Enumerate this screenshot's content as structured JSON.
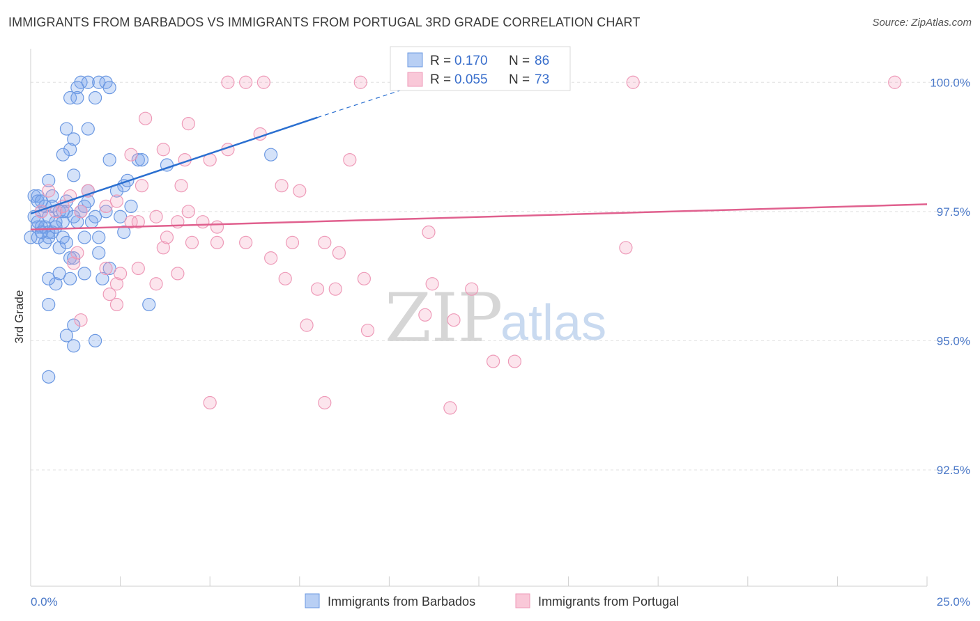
{
  "title": "IMMIGRANTS FROM BARBADOS VS IMMIGRANTS FROM PORTUGAL 3RD GRADE CORRELATION CHART",
  "source": "Source: ZipAtlas.com",
  "watermark": {
    "zip": "ZIP",
    "atlas": "atlas"
  },
  "colors": {
    "blue": "#5b8fe0",
    "blue_line": "#2a6fd0",
    "pink": "#f08fb0",
    "pink_line": "#e0608e",
    "grid": "#e0e0e0",
    "tick_label": "#4a78c8"
  },
  "chart_data": {
    "type": "scatter",
    "title": "IMMIGRANTS FROM BARBADOS VS IMMIGRANTS FROM PORTUGAL 3RD GRADE CORRELATION CHART",
    "xlabel": "",
    "ylabel": "3rd Grade",
    "xlim": [
      0,
      25
    ],
    "ylim": [
      90.25,
      100.65
    ],
    "x_tick_labels": [
      "0.0%",
      "25.0%"
    ],
    "y_ticks": [
      {
        "value": 100.0,
        "label": "100.0%"
      },
      {
        "value": 97.5,
        "label": "97.5%"
      },
      {
        "value": 95.0,
        "label": "95.0%"
      },
      {
        "value": 92.5,
        "label": "92.5%"
      }
    ],
    "grid": true,
    "legend": {
      "placement": "top-center",
      "entries": [
        {
          "r_label": "R =",
          "r_value": "0.170",
          "n_label": "N =",
          "n_value": "86"
        },
        {
          "r_label": "R =",
          "r_value": "0.055",
          "n_label": "N =",
          "n_value": "73"
        }
      ]
    },
    "series": [
      {
        "name": "Immigrants from Barbados",
        "color": "#5b8fe0",
        "trend": {
          "x": [
            0,
            8.0
          ],
          "y": [
            97.46,
            99.32
          ],
          "dashed_to": [
            11.0,
            100.0
          ]
        },
        "points": [
          [
            1.4,
            100.0
          ],
          [
            1.6,
            100.0
          ],
          [
            1.9,
            100.0
          ],
          [
            2.1,
            100.0
          ],
          [
            1.3,
            99.9
          ],
          [
            2.2,
            99.9
          ],
          [
            1.1,
            99.7
          ],
          [
            1.3,
            99.7
          ],
          [
            1.8,
            99.7
          ],
          [
            1.0,
            99.1
          ],
          [
            1.6,
            99.1
          ],
          [
            1.2,
            98.9
          ],
          [
            1.1,
            98.7
          ],
          [
            0.9,
            98.6
          ],
          [
            2.2,
            98.5
          ],
          [
            3.0,
            98.5
          ],
          [
            3.1,
            98.5
          ],
          [
            3.8,
            98.4
          ],
          [
            6.7,
            98.6
          ],
          [
            0.5,
            98.1
          ],
          [
            1.2,
            98.2
          ],
          [
            2.6,
            98.0
          ],
          [
            1.6,
            97.9
          ],
          [
            0.2,
            97.8
          ],
          [
            0.6,
            97.8
          ],
          [
            1.0,
            97.7
          ],
          [
            1.5,
            97.6
          ],
          [
            0.1,
            97.8
          ],
          [
            0.2,
            97.7
          ],
          [
            0.4,
            97.6
          ],
          [
            0.6,
            97.6
          ],
          [
            0.8,
            97.5
          ],
          [
            1.0,
            97.5
          ],
          [
            0.3,
            97.5
          ],
          [
            0.1,
            97.4
          ],
          [
            0.7,
            97.3
          ],
          [
            0.9,
            97.3
          ],
          [
            1.3,
            97.3
          ],
          [
            1.7,
            97.3
          ],
          [
            0.2,
            97.2
          ],
          [
            0.3,
            97.2
          ],
          [
            0.4,
            97.2
          ],
          [
            0.5,
            97.1
          ],
          [
            0.6,
            97.1
          ],
          [
            0.2,
            97.0
          ],
          [
            0.0,
            97.0
          ],
          [
            0.9,
            97.0
          ],
          [
            1.5,
            97.0
          ],
          [
            1.9,
            97.0
          ],
          [
            2.6,
            97.1
          ],
          [
            2.7,
            98.1
          ],
          [
            2.4,
            97.9
          ],
          [
            2.1,
            97.5
          ],
          [
            1.8,
            97.4
          ],
          [
            1.2,
            97.4
          ],
          [
            0.8,
            96.8
          ],
          [
            1.1,
            96.6
          ],
          [
            1.2,
            96.6
          ],
          [
            1.9,
            96.7
          ],
          [
            0.5,
            96.2
          ],
          [
            0.8,
            96.3
          ],
          [
            0.7,
            96.1
          ],
          [
            1.1,
            96.2
          ],
          [
            1.5,
            96.3
          ],
          [
            2.2,
            96.4
          ],
          [
            2.0,
            96.2
          ],
          [
            0.5,
            95.7
          ],
          [
            3.3,
            95.7
          ],
          [
            1.2,
            95.3
          ],
          [
            1.0,
            95.1
          ],
          [
            1.2,
            94.9
          ],
          [
            0.5,
            94.3
          ],
          [
            1.8,
            95.0
          ],
          [
            0.3,
            97.7
          ],
          [
            0.5,
            97.4
          ],
          [
            1.6,
            97.7
          ],
          [
            0.4,
            96.9
          ],
          [
            2.5,
            97.4
          ],
          [
            2.8,
            97.6
          ],
          [
            0.7,
            97.2
          ],
          [
            1.0,
            96.9
          ],
          [
            0.2,
            97.3
          ],
          [
            0.9,
            97.5
          ],
          [
            1.4,
            97.5
          ],
          [
            0.5,
            97.0
          ],
          [
            0.3,
            97.1
          ]
        ]
      },
      {
        "name": "Immigrants from Portugal",
        "color": "#f08fb0",
        "trend": {
          "x": [
            0,
            25.0
          ],
          "y": [
            97.15,
            97.64
          ]
        },
        "points": [
          [
            5.5,
            100.0
          ],
          [
            6.0,
            100.0
          ],
          [
            6.5,
            100.0
          ],
          [
            9.2,
            100.0
          ],
          [
            14.0,
            100.0
          ],
          [
            16.8,
            100.0
          ],
          [
            24.1,
            100.0
          ],
          [
            3.2,
            99.3
          ],
          [
            4.4,
            99.2
          ],
          [
            6.4,
            99.0
          ],
          [
            5.5,
            98.7
          ],
          [
            2.8,
            98.6
          ],
          [
            3.7,
            98.7
          ],
          [
            4.3,
            98.5
          ],
          [
            5.0,
            98.5
          ],
          [
            7.0,
            98.0
          ],
          [
            7.5,
            97.9
          ],
          [
            8.9,
            98.5
          ],
          [
            4.2,
            98.0
          ],
          [
            3.1,
            98.0
          ],
          [
            0.5,
            97.9
          ],
          [
            1.1,
            97.8
          ],
          [
            1.6,
            97.9
          ],
          [
            2.4,
            97.7
          ],
          [
            0.7,
            97.5
          ],
          [
            1.4,
            97.5
          ],
          [
            2.8,
            97.3
          ],
          [
            3.5,
            97.4
          ],
          [
            4.1,
            97.3
          ],
          [
            4.4,
            97.5
          ],
          [
            4.8,
            97.3
          ],
          [
            3.8,
            97.0
          ],
          [
            5.2,
            97.2
          ],
          [
            3.7,
            96.8
          ],
          [
            4.5,
            96.9
          ],
          [
            5.2,
            96.9
          ],
          [
            6.0,
            96.9
          ],
          [
            6.7,
            96.6
          ],
          [
            7.3,
            96.9
          ],
          [
            8.2,
            96.9
          ],
          [
            8.6,
            96.7
          ],
          [
            11.1,
            97.1
          ],
          [
            16.6,
            96.8
          ],
          [
            1.2,
            96.5
          ],
          [
            2.1,
            96.4
          ],
          [
            2.5,
            96.3
          ],
          [
            3.0,
            96.4
          ],
          [
            3.5,
            96.1
          ],
          [
            4.1,
            96.3
          ],
          [
            2.4,
            96.1
          ],
          [
            7.1,
            96.2
          ],
          [
            8.0,
            96.0
          ],
          [
            8.5,
            96.0
          ],
          [
            9.3,
            96.2
          ],
          [
            11.2,
            96.1
          ],
          [
            12.3,
            96.0
          ],
          [
            2.2,
            95.9
          ],
          [
            2.4,
            95.7
          ],
          [
            1.4,
            95.4
          ],
          [
            7.7,
            95.3
          ],
          [
            9.4,
            95.2
          ],
          [
            11.0,
            95.5
          ],
          [
            11.8,
            95.4
          ],
          [
            12.9,
            94.6
          ],
          [
            13.5,
            94.6
          ],
          [
            5.0,
            93.8
          ],
          [
            8.2,
            93.8
          ],
          [
            11.7,
            93.7
          ],
          [
            2.1,
            97.6
          ],
          [
            0.3,
            97.5
          ],
          [
            0.9,
            97.6
          ],
          [
            1.3,
            96.7
          ],
          [
            3.0,
            97.3
          ]
        ]
      }
    ]
  },
  "bottom_legend": [
    "Immigrants from Barbados",
    "Immigrants from Portugal"
  ]
}
